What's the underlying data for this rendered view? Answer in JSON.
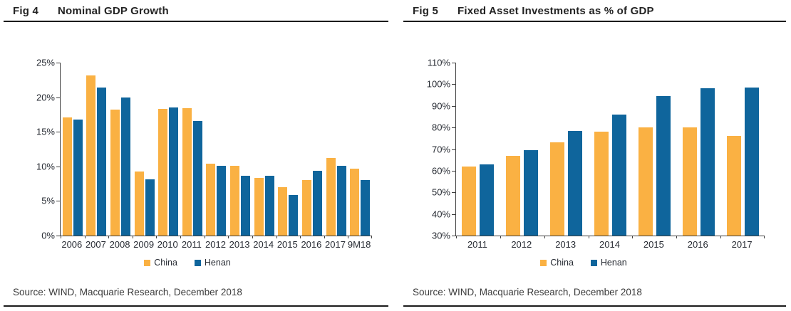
{
  "panels": [
    {
      "fig_label": "Fig 4",
      "title": "Nominal GDP Growth",
      "source": "Source: WIND, Macquarie Research, December 2018"
    },
    {
      "fig_label": "Fig 5",
      "title": "Fixed Asset Investments as % of GDP",
      "source": "Source: WIND, Macquarie Research, December 2018"
    }
  ],
  "colors": {
    "china_orange": "#FAB143",
    "henan_blue": "#0F659C",
    "axis": "#3f3f3f",
    "tick_label": "#272b33",
    "title_text": "#232323",
    "rule": "#1b1b1b"
  },
  "chart_data": [
    {
      "type": "bar",
      "title": "Fig 4 Nominal GDP Growth",
      "categories": [
        "2006",
        "2007",
        "2008",
        "2009",
        "2010",
        "2011",
        "2012",
        "2013",
        "2014",
        "2015",
        "2016",
        "2017",
        "9M18"
      ],
      "series": [
        {
          "name": "China",
          "color": "#FAB143",
          "values": [
            17.1,
            23.1,
            18.2,
            9.3,
            18.3,
            18.4,
            10.4,
            10.1,
            8.3,
            7.0,
            8.0,
            11.2,
            9.7
          ]
        },
        {
          "name": "Henan",
          "color": "#0F659C",
          "values": [
            16.8,
            21.4,
            20.0,
            8.1,
            18.5,
            16.6,
            10.1,
            8.6,
            8.6,
            5.9,
            9.4,
            10.1,
            8.0
          ]
        }
      ],
      "xlabel": "",
      "ylabel": "",
      "ylim": [
        0,
        25
      ],
      "ytick_step": 5,
      "ytick_format": "percent",
      "grid": false,
      "legend_position": "bottom"
    },
    {
      "type": "bar",
      "title": "Fig 5 Fixed Asset Investments as % of GDP",
      "categories": [
        "2011",
        "2012",
        "2013",
        "2014",
        "2015",
        "2016",
        "2017"
      ],
      "series": [
        {
          "name": "China",
          "color": "#FAB143",
          "values": [
            62,
            67,
            73,
            78,
            80,
            80,
            76
          ]
        },
        {
          "name": "Henan",
          "color": "#0F659C",
          "values": [
            63,
            69.5,
            78.5,
            86,
            94.5,
            98.3,
            98.5
          ]
        }
      ],
      "xlabel": "",
      "ylabel": "",
      "ylim": [
        30,
        110
      ],
      "ytick_step": 10,
      "ytick_format": "percent",
      "grid": false,
      "legend_position": "bottom"
    }
  ]
}
